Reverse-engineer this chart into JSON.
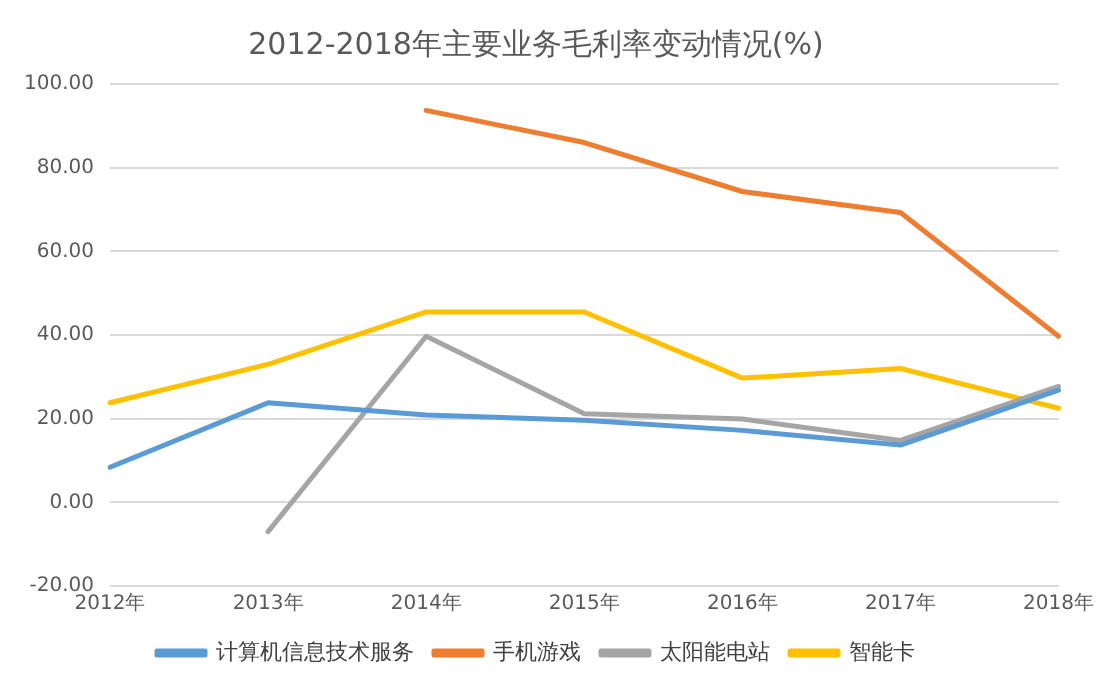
{
  "chart_data": {
    "type": "line",
    "title": "2012-2018年主要业务毛利率变动情况(%)",
    "categories": [
      "2012年",
      "2013年",
      "2014年",
      "2015年",
      "2016年",
      "2017年",
      "2018年"
    ],
    "series": [
      {
        "name": "计算机信息技术服务",
        "color": "#5b9bd5",
        "values": [
          8.4,
          23.8,
          20.9,
          19.6,
          17.2,
          13.7,
          26.8
        ]
      },
      {
        "name": "手机游戏",
        "color": "#ed7d31",
        "values": [
          null,
          null,
          93.7,
          86.0,
          74.3,
          69.3,
          39.7
        ]
      },
      {
        "name": "太阳能电站",
        "color": "#a5a5a5",
        "values": [
          null,
          -7.0,
          39.7,
          21.2,
          19.9,
          14.8,
          27.7
        ]
      },
      {
        "name": "智能卡",
        "color": "#ffc000",
        "values": [
          23.8,
          33.0,
          45.5,
          45.5,
          29.7,
          32.0,
          22.5
        ]
      }
    ],
    "ylim": [
      -20,
      100
    ],
    "yticks": [
      {
        "value": -20,
        "label": "-20.00"
      },
      {
        "value": 0,
        "label": "0.00"
      },
      {
        "value": 20,
        "label": "20.00"
      },
      {
        "value": 40,
        "label": "40.00"
      },
      {
        "value": 60,
        "label": "60.00"
      },
      {
        "value": 80,
        "label": "80.00"
      },
      {
        "value": 100,
        "label": "100.00"
      }
    ],
    "grid": "y",
    "legend": "bottom",
    "marker": "none",
    "line_style": "solid"
  }
}
